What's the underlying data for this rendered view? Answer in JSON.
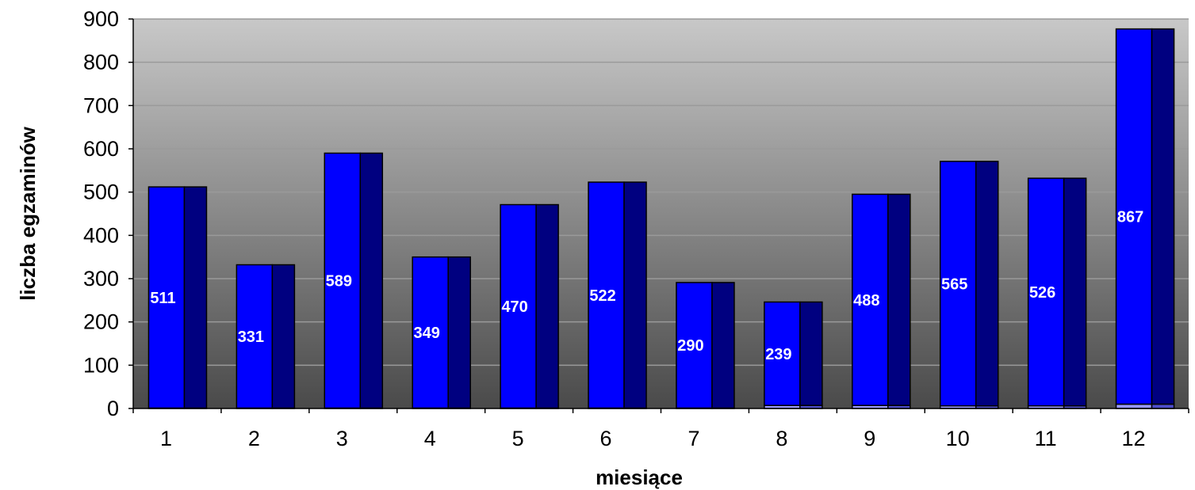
{
  "chart_data": {
    "type": "bar",
    "title": "",
    "xlabel": "miesiące",
    "ylabel": "liczba egzaminów",
    "categories": [
      "1",
      "2",
      "3",
      "4",
      "5",
      "6",
      "7",
      "8",
      "9",
      "10",
      "11",
      "12"
    ],
    "series": [
      {
        "values": [
          511,
          331,
          589,
          349,
          470,
          522,
          290,
          239,
          488,
          565,
          526,
          867
        ]
      },
      {
        "values": [
          1,
          1,
          1,
          1,
          1,
          1,
          1,
          7,
          7,
          6,
          6,
          10
        ]
      }
    ],
    "data_labels": [
      "511",
      "331",
      "589",
      "349",
      "470",
      "522",
      "290",
      "239",
      "488",
      "565",
      "526",
      "867"
    ],
    "yticks": [
      "0",
      "100",
      "200",
      "300",
      "400",
      "500",
      "600",
      "700",
      "800",
      "900"
    ],
    "ylim": [
      0,
      900
    ],
    "grid": true,
    "legend": "none",
    "colors": {
      "bar_front": "#0000ff",
      "bar_side": "#000080",
      "bar_base_front": "#9999ff",
      "bar_base_side": "#4d4dcc",
      "plot_top": "#c8c8c8",
      "plot_bottom": "#4a4a4a",
      "grid": "#9a9a9a"
    }
  }
}
